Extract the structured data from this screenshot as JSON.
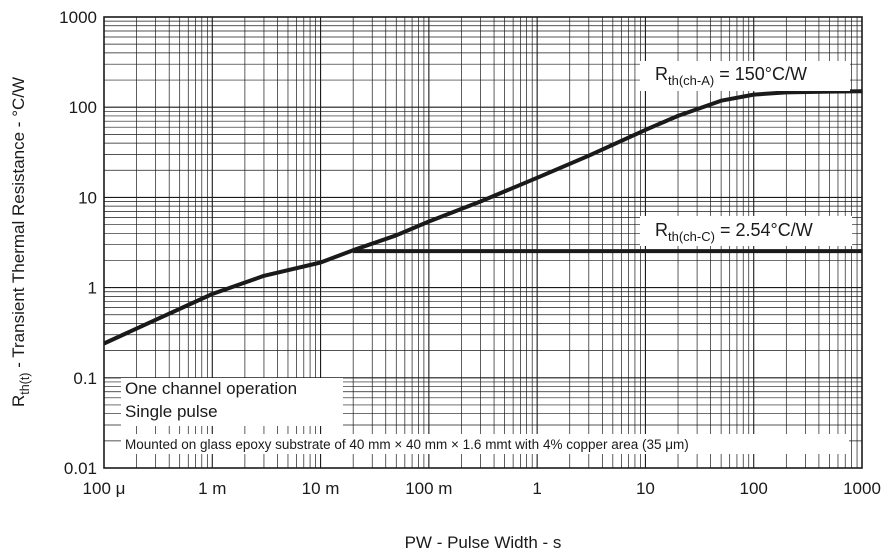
{
  "chart_data": {
    "type": "line",
    "x_scale": "log",
    "y_scale": "log",
    "xlim": [
      0.0001,
      1000
    ],
    "ylim": [
      0.01,
      1000
    ],
    "grid": true,
    "xlabel": "PW - Pulse Width - s",
    "ylabel": {
      "prefix": "R",
      "subscript": "th(t)",
      "suffix": " - Transient Thermal Resistance - °C/W"
    },
    "x_ticks": [
      {
        "value": 0.0001,
        "label": "100 μ"
      },
      {
        "value": 0.001,
        "label": "1 m"
      },
      {
        "value": 0.01,
        "label": "10 m"
      },
      {
        "value": 0.1,
        "label": "100 m"
      },
      {
        "value": 1,
        "label": "1"
      },
      {
        "value": 10,
        "label": "10"
      },
      {
        "value": 100,
        "label": "100"
      },
      {
        "value": 1000,
        "label": "1000"
      }
    ],
    "y_ticks": [
      {
        "value": 0.01,
        "label": "0.01"
      },
      {
        "value": 0.1,
        "label": "0.1"
      },
      {
        "value": 1,
        "label": "1"
      },
      {
        "value": 10,
        "label": "10"
      },
      {
        "value": 100,
        "label": "100"
      },
      {
        "value": 1000,
        "label": "1000"
      }
    ],
    "series": [
      {
        "x": [
          0.0001,
          0.0003,
          0.001,
          0.003,
          0.01,
          0.02,
          0.05,
          0.1,
          0.3,
          1,
          3,
          10,
          20,
          50,
          100,
          200,
          500,
          1000
        ],
        "y": [
          0.24,
          0.44,
          0.85,
          1.35,
          1.9,
          2.6,
          3.8,
          5.4,
          9.0,
          16.5,
          29,
          56,
          80,
          118,
          138,
          146,
          149,
          150
        ]
      },
      {
        "x": [
          0.02,
          1000
        ],
        "y": [
          2.54,
          2.54
        ]
      }
    ],
    "annotations": [
      {
        "prefix": "R",
        "subscript": "th(ch-A)",
        "suffix": " = 150°C/W"
      },
      {
        "prefix": "R",
        "subscript": "th(ch-C)",
        "suffix": " = 2.54°C/W"
      }
    ],
    "notes": [
      "One channel operation",
      "Single pulse",
      "Mounted on glass epoxy substrate of 40 mm × 40 mm × 1.6 mmt with 4% copper area (35 μm)"
    ],
    "colors": {
      "curve": "#1a1a1a",
      "grid": "#1a1a1a",
      "background": "#ffffff"
    }
  }
}
